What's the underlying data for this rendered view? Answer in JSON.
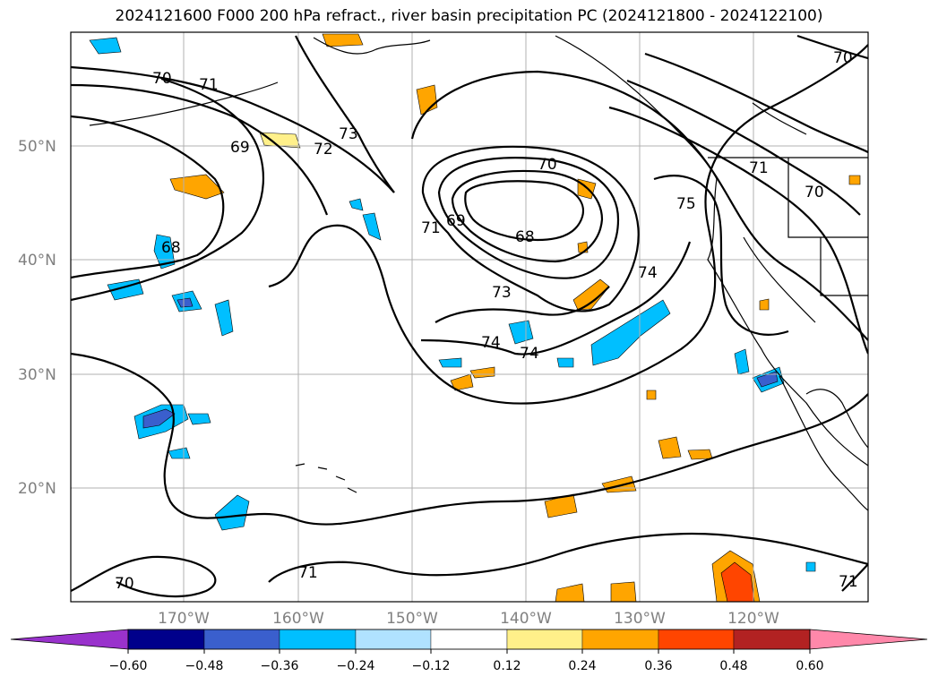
{
  "title": "2024121600 F000 200 hPa refract., river basin precipitation PC (2024121800 - 2024122100)",
  "lat_labels": [
    "50°N",
    "40°N",
    "30°N",
    "20°N"
  ],
  "lon_labels": [
    "170°W",
    "160°W",
    "150°W",
    "140°W",
    "130°W",
    "120°W"
  ],
  "contour_labels": [
    "70",
    "71",
    "73",
    "72",
    "69",
    "68",
    "70",
    "69",
    "71",
    "68",
    "73",
    "74",
    "74",
    "74",
    "75",
    "71",
    "70",
    "70",
    "71",
    "70",
    "71"
  ],
  "colorbar": {
    "tick_labels": [
      "−0.60",
      "−0.48",
      "−0.36",
      "−0.24",
      "−0.12",
      "0.12",
      "0.24",
      "0.36",
      "0.48",
      "0.60"
    ],
    "colors": [
      "#9932cc",
      "#00008b",
      "#3a5fcd",
      "#00bfff",
      "#b0e2ff",
      "#ffffff",
      "#fff08a",
      "#ffa500",
      "#ff4500",
      "#b22222",
      "#ff88aa"
    ]
  },
  "palette": {
    "contour": "#000000",
    "coastline": "#000000",
    "grid": "#b0b0b0",
    "axis_label": "#808080"
  }
}
